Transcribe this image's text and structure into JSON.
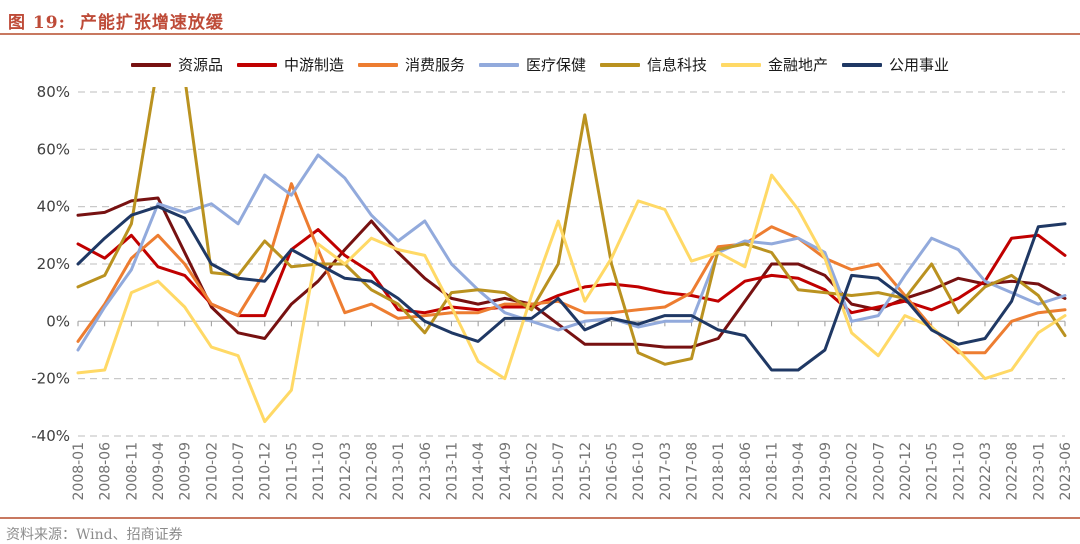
{
  "title": {
    "fig_label": "图 19:",
    "text": "产能扩张增速放缓"
  },
  "footer": {
    "source": "资料来源：Wind、招商证券"
  },
  "style": {
    "title_color": "#BE4B38",
    "rule_color": "#C87860",
    "grid_color": "#C9C9C9",
    "zero_line_color": "#BFBFBF",
    "ytick_label_color": "#404040",
    "xtick_label_color": "#737373",
    "footer_color": "#8C8C8C"
  },
  "chart_data": {
    "type": "line",
    "title": "产能扩张增速放缓",
    "xlabel": "",
    "ylabel": "",
    "ylim": [
      -40,
      80
    ],
    "yticks": [
      80,
      60,
      40,
      20,
      0,
      -20,
      -40
    ],
    "ytick_labels": [
      "80%",
      "60%",
      "40%",
      "20%",
      "0%",
      "-20%",
      "-40%"
    ],
    "grid": "horizontal-dashed",
    "legend_position": "top",
    "categories": [
      "2008-01",
      "2008-06",
      "2008-11",
      "2009-04",
      "2009-09",
      "2010-02",
      "2010-07",
      "2010-12",
      "2011-05",
      "2011-10",
      "2012-03",
      "2012-08",
      "2013-01",
      "2013-06",
      "2013-11",
      "2014-04",
      "2014-09",
      "2015-02",
      "2015-07",
      "2015-12",
      "2016-05",
      "2016-10",
      "2017-03",
      "2017-08",
      "2018-01",
      "2018-06",
      "2018-11",
      "2019-04",
      "2019-09",
      "2020-02",
      "2020-07",
      "2020-12",
      "2021-05",
      "2021-10",
      "2022-03",
      "2022-08",
      "2023-01",
      "2023-06"
    ],
    "series": [
      {
        "name": "资源品",
        "color": "#771111",
        "values": [
          37,
          38,
          42,
          43,
          24,
          5,
          -4,
          -6,
          6,
          14,
          25,
          35,
          24,
          15,
          8,
          6,
          8,
          6,
          -1,
          -8,
          -8,
          -8,
          -9,
          -9,
          -6,
          7,
          20,
          20,
          16,
          6,
          4,
          8,
          11,
          15,
          13,
          14,
          13,
          8
        ]
      },
      {
        "name": "中游制造",
        "color": "#C00000",
        "values": [
          27,
          22,
          30,
          19,
          16,
          6,
          2,
          2,
          25,
          32,
          23,
          17,
          4,
          3,
          5,
          4,
          5,
          5,
          9,
          12,
          13,
          12,
          10,
          9,
          7,
          14,
          16,
          15,
          11,
          3,
          5,
          7,
          4,
          8,
          14,
          29,
          30,
          23
        ]
      },
      {
        "name": "消费服务",
        "color": "#ED7D31",
        "values": [
          -7,
          6,
          22,
          30,
          20,
          6,
          2,
          17,
          48,
          25,
          3,
          6,
          1,
          2,
          3,
          3,
          6,
          6,
          7,
          3,
          3,
          4,
          5,
          10,
          26,
          27,
          33,
          29,
          22,
          18,
          20,
          9,
          -2,
          -11,
          -11,
          0,
          3,
          4
        ]
      },
      {
        "name": "医疗保健",
        "color": "#92AADC",
        "values": [
          -10,
          5,
          18,
          41,
          38,
          41,
          34,
          51,
          44,
          58,
          50,
          37,
          28,
          35,
          20,
          11,
          3,
          0,
          -3,
          0,
          1,
          -2,
          0,
          0,
          24,
          28,
          27,
          29,
          24,
          0,
          2,
          16,
          29,
          25,
          14,
          10,
          6,
          9
        ]
      },
      {
        "name": "信息科技",
        "color": "#BA9220",
        "values": [
          12,
          16,
          34,
          90,
          85,
          17,
          16,
          28,
          19,
          20,
          20,
          11,
          6,
          -4,
          10,
          11,
          10,
          4,
          20,
          72,
          20,
          -11,
          -15,
          -13,
          25,
          27,
          24,
          11,
          10,
          9,
          10,
          8,
          20,
          3,
          12,
          16,
          9,
          -5
        ]
      },
      {
        "name": "金融地产",
        "color": "#FFD966",
        "values": [
          -18,
          -17,
          10,
          14,
          5,
          -9,
          -12,
          -35,
          -24,
          27,
          20,
          29,
          25,
          23,
          5,
          -14,
          -20,
          9,
          35,
          7,
          22,
          42,
          39,
          21,
          24,
          19,
          51,
          39,
          22,
          -4,
          -12,
          2,
          -2,
          -10,
          -20,
          -17,
          -4,
          2
        ]
      },
      {
        "name": "公用事业",
        "color": "#1F3864",
        "values": [
          20,
          29,
          37,
          40,
          36,
          20,
          15,
          14,
          25,
          20,
          15,
          14,
          8,
          0,
          -4,
          -7,
          1,
          1,
          8,
          -3,
          1,
          -1,
          2,
          2,
          -3,
          -5,
          -17,
          -17,
          -10,
          16,
          15,
          8,
          -3,
          -8,
          -6,
          7,
          33,
          34
        ]
      }
    ]
  }
}
